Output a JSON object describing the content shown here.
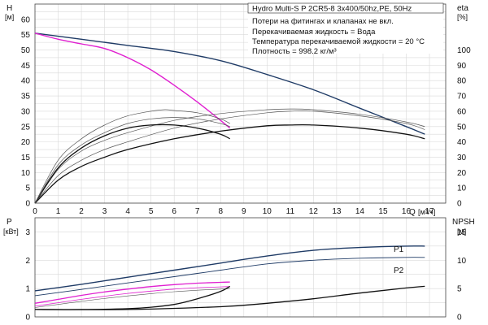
{
  "header": {
    "title": "Hydro Multi-S P 2CR5-8 3x400/50hz,PE, 50Hz"
  },
  "info_lines": [
    "Потери на фитингах и клапанах не вкл.",
    "Перекачиваемая жидкость = Вода",
    "Температура перекачиваемой жидкости = 20 °C",
    "Плотность = 998.2 кг/м³"
  ],
  "colors": {
    "navy": "#1f3b66",
    "magenta": "#e020d0",
    "black": "#111111",
    "gray_thin": "#555555"
  },
  "chart_data": [
    {
      "type": "line",
      "name": "top-chart",
      "ylabel_left": "H",
      "yunit_left": "[м]",
      "ylabel_right": "eta",
      "yunit_right": "[%]",
      "xlabel": "Q",
      "xunit": "[м³/ч]",
      "xlim": [
        0,
        17.7
      ],
      "ylim": [
        0,
        65
      ],
      "ylim_right": [
        0,
        130
      ],
      "x_ticks": [
        0,
        1,
        2,
        3,
        4,
        5,
        6,
        7,
        8,
        9,
        10,
        11,
        12,
        13,
        14,
        15,
        16,
        17
      ],
      "y_ticks": [
        0,
        5,
        10,
        15,
        20,
        25,
        30,
        35,
        40,
        45,
        50,
        55,
        60
      ],
      "y_right_ticks": [
        0,
        10,
        20,
        30,
        40,
        50,
        60,
        70,
        80,
        90,
        100
      ],
      "grid": true,
      "series": [
        {
          "key": "h_max",
          "axis": "left",
          "color": "navy",
          "width": 1.4,
          "x": [
            0,
            2,
            4,
            6,
            8,
            10,
            12,
            14,
            16,
            16.8
          ],
          "y": [
            55.5,
            53.5,
            51.5,
            49.5,
            46.5,
            42,
            37,
            31,
            25,
            22.5
          ]
        },
        {
          "key": "h_single",
          "axis": "left",
          "color": "magenta",
          "width": 1.4,
          "x": [
            0,
            1,
            2,
            3,
            4,
            5,
            6,
            7,
            8,
            8.4
          ],
          "y": [
            55.5,
            53.5,
            52,
            50.5,
            47.5,
            43.5,
            38.5,
            33,
            27,
            24.5
          ]
        },
        {
          "key": "eta_big_thick",
          "axis": "right",
          "color": "black",
          "width": 1.3,
          "x": [
            0,
            1,
            2,
            3,
            4,
            6,
            8,
            10,
            11,
            12,
            14,
            16,
            16.8
          ],
          "y": [
            0,
            15,
            24,
            30,
            35,
            42,
            47,
            50.5,
            51,
            51,
            49,
            45,
            42
          ]
        },
        {
          "key": "eta_big_thin_outer",
          "axis": "right",
          "color": "gray_thin",
          "width": 0.7,
          "x": [
            0,
            1,
            2,
            3,
            4,
            6,
            8,
            10,
            11,
            12,
            14,
            16,
            16.8
          ],
          "y": [
            0,
            22,
            34,
            41,
            46,
            54,
            58.5,
            61,
            61.5,
            61,
            58,
            53,
            50
          ]
        },
        {
          "key": "eta_big_thin_inner",
          "axis": "right",
          "color": "gray_thin",
          "width": 0.7,
          "x": [
            0,
            1,
            2,
            3,
            4,
            6,
            8,
            10,
            11,
            12,
            14,
            16,
            16.8
          ],
          "y": [
            0,
            18,
            28,
            35,
            40,
            49,
            55,
            59,
            60,
            60,
            57,
            52,
            48
          ]
        },
        {
          "key": "eta_small_thick",
          "axis": "right",
          "color": "black",
          "width": 1.3,
          "x": [
            0,
            1,
            2,
            3,
            4,
            5,
            6,
            7,
            8,
            8.4
          ],
          "y": [
            0,
            23,
            36,
            44,
            49,
            51,
            51,
            49,
            45,
            42
          ]
        },
        {
          "key": "eta_small_thin_outer",
          "axis": "right",
          "color": "gray_thin",
          "width": 0.7,
          "x": [
            0,
            1,
            2,
            3,
            4,
            5,
            5.6,
            6,
            7,
            8,
            8.4
          ],
          "y": [
            0,
            28,
            42,
            51,
            57,
            60,
            61,
            60.5,
            59,
            55,
            52
          ]
        },
        {
          "key": "eta_small_thin_inner",
          "axis": "right",
          "color": "gray_thin",
          "width": 0.7,
          "x": [
            0,
            1,
            2,
            3,
            4,
            5,
            6,
            7,
            8,
            8.4
          ],
          "y": [
            0,
            25,
            38,
            46,
            52,
            55,
            56,
            55,
            52,
            50
          ]
        }
      ]
    },
    {
      "type": "line",
      "name": "bottom-chart",
      "ylabel_left": "P",
      "yunit_left": "[кВт]",
      "ylabel_right": "NPSH",
      "yunit_right": "[м]",
      "xlim": [
        0,
        17.7
      ],
      "ylim": [
        0,
        3.5
      ],
      "ylim_right": [
        0,
        17.5
      ],
      "y_ticks": [
        0,
        1,
        2,
        3
      ],
      "y_right_ticks": [
        0,
        5,
        10,
        15
      ],
      "grid": true,
      "series_labels": {
        "p1": "P1",
        "p2": "P2"
      },
      "series": [
        {
          "key": "p1",
          "axis": "left",
          "color": "navy",
          "width": 1.4,
          "x": [
            0,
            2,
            4,
            6,
            8,
            10,
            12,
            14,
            16,
            16.8
          ],
          "y": [
            0.92,
            1.15,
            1.4,
            1.65,
            1.9,
            2.15,
            2.35,
            2.45,
            2.5,
            2.5
          ]
        },
        {
          "key": "p2",
          "axis": "left",
          "color": "navy",
          "width": 0.9,
          "x": [
            0,
            2,
            4,
            6,
            8,
            10,
            12,
            14,
            16,
            16.8
          ],
          "y": [
            0.75,
            0.97,
            1.2,
            1.42,
            1.65,
            1.87,
            2.0,
            2.07,
            2.1,
            2.1
          ]
        },
        {
          "key": "p1_single",
          "axis": "left",
          "color": "magenta",
          "width": 1.3,
          "x": [
            0,
            1,
            2,
            3,
            4,
            5,
            6,
            7,
            8,
            8.4
          ],
          "y": [
            0.48,
            0.62,
            0.76,
            0.88,
            0.98,
            1.07,
            1.14,
            1.19,
            1.22,
            1.23
          ]
        },
        {
          "key": "p2_single",
          "axis": "left",
          "color": "magenta",
          "width": 0.8,
          "x": [
            0,
            1,
            2,
            3,
            4,
            5,
            6,
            7,
            8,
            8.4
          ],
          "y": [
            0.38,
            0.5,
            0.62,
            0.73,
            0.83,
            0.91,
            0.98,
            1.03,
            1.06,
            1.07
          ]
        },
        {
          "key": "p_inner_thin",
          "axis": "left",
          "color": "gray_thin",
          "width": 0.6,
          "x": [
            0,
            1,
            2,
            3,
            4,
            5,
            6,
            7,
            8,
            8.4
          ],
          "y": [
            0.33,
            0.44,
            0.55,
            0.65,
            0.74,
            0.82,
            0.89,
            0.94,
            0.98,
            1.0
          ]
        },
        {
          "key": "npsh_big",
          "axis": "right",
          "color": "black",
          "width": 1.3,
          "x": [
            0,
            4,
            8,
            10,
            12,
            14,
            16,
            16.8
          ],
          "y": [
            1.3,
            1.3,
            1.8,
            2.4,
            3.2,
            4.2,
            5.1,
            5.4
          ]
        },
        {
          "key": "npsh_small",
          "axis": "right",
          "color": "black",
          "width": 1.3,
          "x": [
            0,
            2,
            4,
            5,
            6,
            7,
            8,
            8.4
          ],
          "y": [
            1.3,
            1.3,
            1.45,
            1.7,
            2.2,
            3.2,
            4.5,
            5.4
          ]
        }
      ]
    }
  ]
}
